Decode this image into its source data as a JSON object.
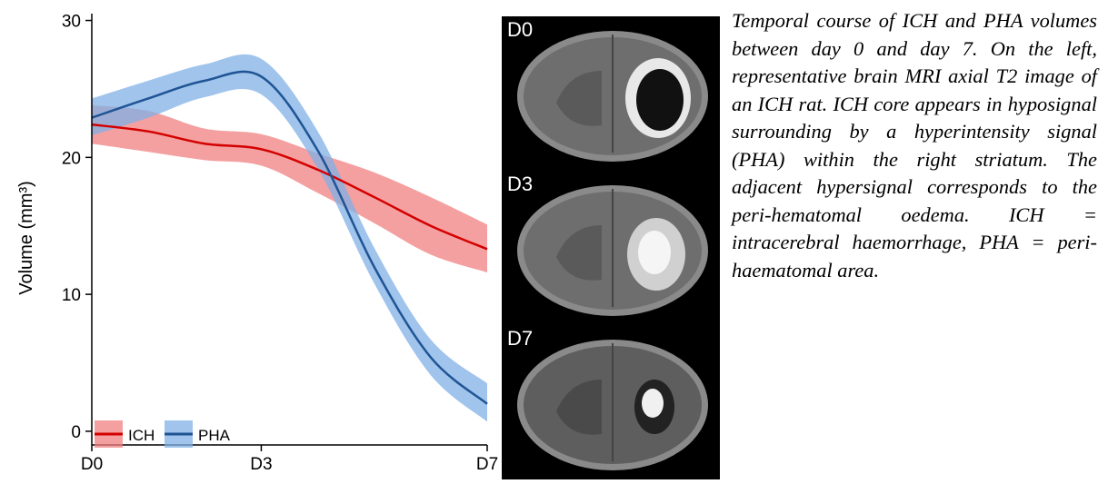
{
  "chart_data": {
    "type": "line",
    "ylabel": "Volume (mm³)",
    "xlabel": "",
    "x_categories": [
      "D0",
      "D3",
      "D7"
    ],
    "y_ticks": [
      0,
      10,
      20,
      30
    ],
    "ylim": [
      -1,
      30.5
    ],
    "grid": false,
    "legend_placement": "bottom-left",
    "series": [
      {
        "name": "ICH",
        "line_color": "#d40000",
        "band_color": "#f08080",
        "x": [
          0,
          1,
          2,
          3,
          4,
          5,
          6,
          7
        ],
        "mean": [
          22.4,
          21.9,
          21.0,
          20.6,
          19.1,
          17.1,
          15.0,
          13.3
        ],
        "lower": [
          21.0,
          20.4,
          19.8,
          19.4,
          17.4,
          15.2,
          12.9,
          11.6
        ],
        "upper": [
          23.8,
          23.4,
          22.1,
          21.7,
          20.3,
          18.9,
          17.1,
          15.1
        ]
      },
      {
        "name": "PHA",
        "line_color": "#1f5494",
        "band_color": "#80b0e6",
        "x": [
          0,
          1,
          2,
          3,
          4,
          5,
          6,
          7
        ],
        "mean": [
          22.9,
          24.3,
          25.6,
          25.9,
          20.5,
          12.0,
          5.4,
          2.0
        ],
        "lower": [
          21.6,
          22.9,
          24.4,
          24.6,
          19.2,
          10.8,
          4.1,
          0.7
        ],
        "upper": [
          24.3,
          25.6,
          26.8,
          27.2,
          21.9,
          13.4,
          6.7,
          3.5
        ]
      }
    ]
  },
  "mri": {
    "labels": [
      "D0",
      "D3",
      "D7"
    ]
  },
  "caption": "Temporal course of ICH and PHA volumes between day 0 and day 7. On the left, representative brain MRI axial T2 image of an ICH rat. ICH core appears in hyposignal surrounding by a hyperintensity signal (PHA) within the right striatum. The adjacent hypersignal corresponds to the peri-hematomal oedema. ICH = intracerebral haemorrhage, PHA = peri-haematomal area."
}
